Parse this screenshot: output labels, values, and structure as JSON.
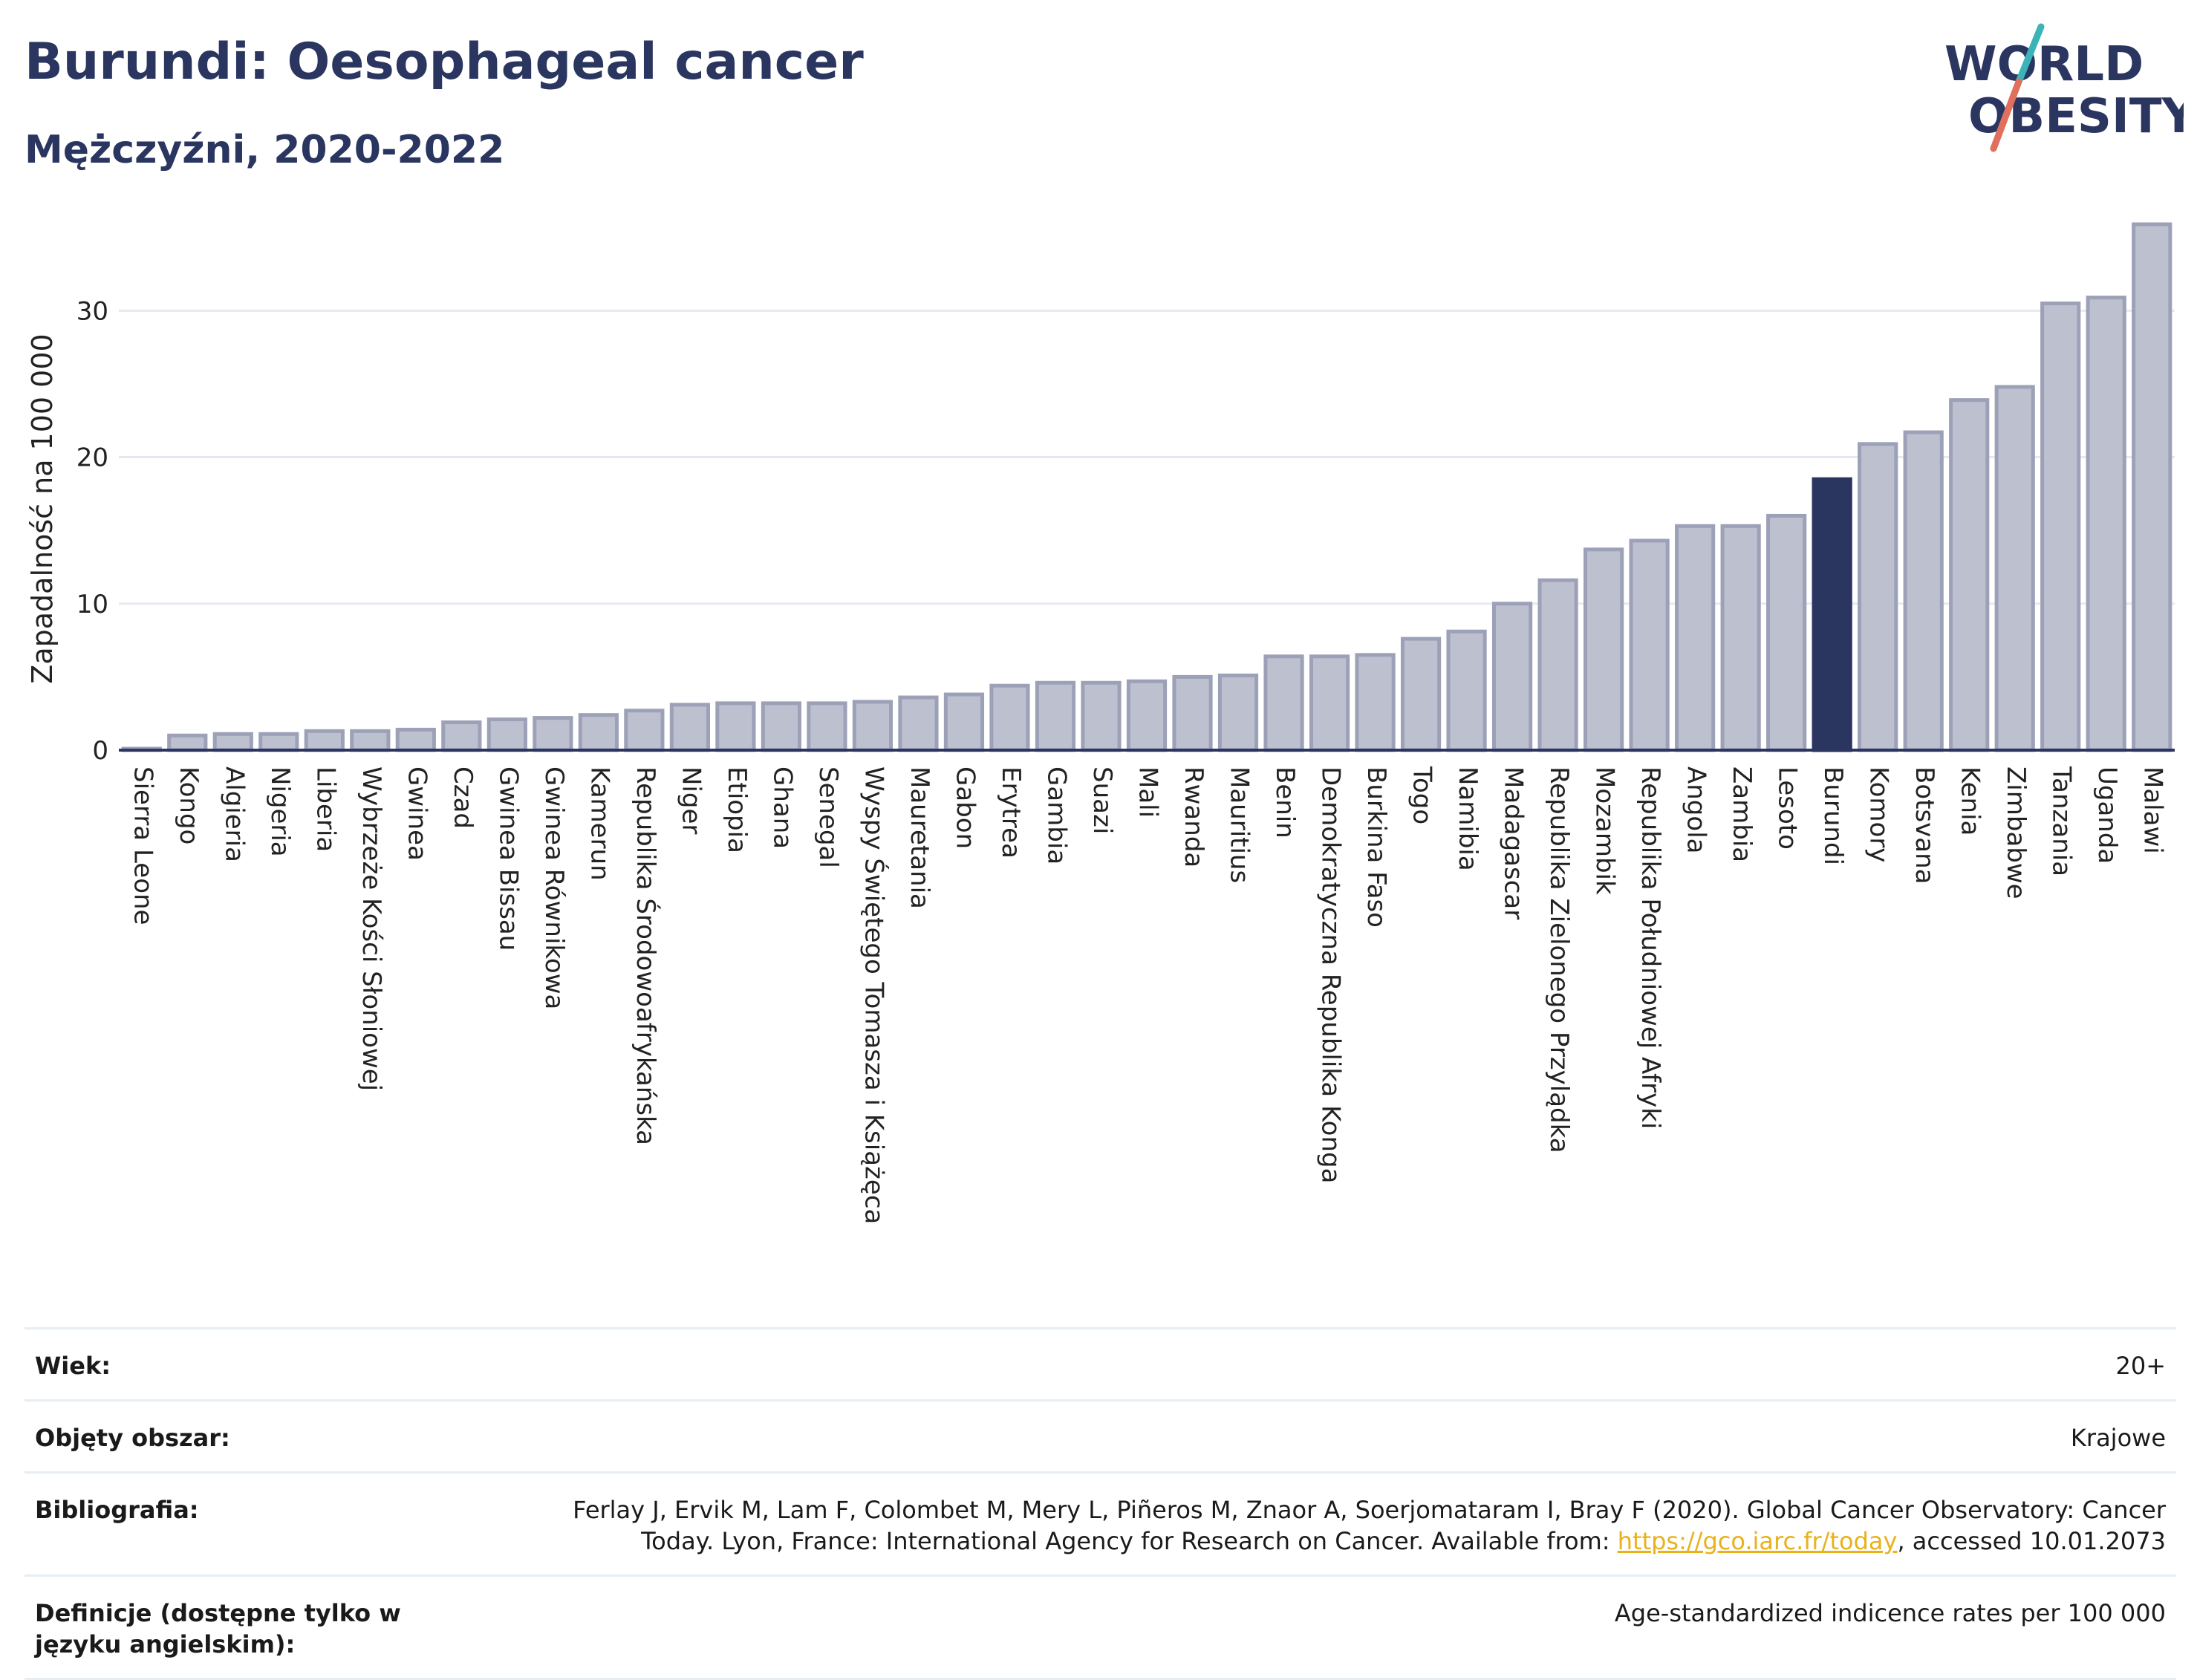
{
  "header": {
    "title": "Burundi: Oesophageal cancer",
    "subtitle": "Mężczyźni, 2020-2022"
  },
  "logo": {
    "line1": "WORLD",
    "line2": "OBESITY",
    "colors": {
      "text": "#2a3560",
      "slash_teal": "#3bb3b8",
      "slash_coral": "#e0705d"
    }
  },
  "colors": {
    "bar_fill": "#bcc0cf",
    "bar_stroke": "#9da1b8",
    "highlight_fill": "#2a3560",
    "axis": "#2a3560",
    "grid": "#e6eaf0"
  },
  "chart_data": {
    "type": "bar",
    "title": "",
    "xlabel": "",
    "ylabel": "Zapadalność na 100 000",
    "ylim": [
      0,
      36
    ],
    "yticks": [
      0,
      10,
      20,
      30
    ],
    "grid": true,
    "highlight": "Burundi",
    "categories": [
      "Sierra Leone",
      "Kongo",
      "Algieria",
      "Nigeria",
      "Liberia",
      "Wybrzeże Kości Słoniowej",
      "Gwinea",
      "Czad",
      "Gwinea Bissau",
      "Gwinea Równikowa",
      "Kamerun",
      "Republika Środowoafrykańska",
      "Niger",
      "Etiopia",
      "Ghana",
      "Senegal",
      "Wyspy Świętego Tomasza i Książęca",
      "Mauretania",
      "Gabon",
      "Erytrea",
      "Gambia",
      "Suazi",
      "Mali",
      "Rwanda",
      "Mauritius",
      "Benin",
      "Demokratyczna Republika Konga",
      "Burkina Faso",
      "Togo",
      "Namibia",
      "Madagascar",
      "Republika Zielonego Przylądka",
      "Mozambik",
      "Republika Południowej Afryki",
      "Angola",
      "Zambia",
      "Lesoto",
      "Burundi",
      "Komory",
      "Botsvana",
      "Kenia",
      "Zimbabwe",
      "Tanzania",
      "Uganda",
      "Malawi"
    ],
    "values": [
      0.1,
      1.0,
      1.1,
      1.1,
      1.3,
      1.3,
      1.4,
      1.9,
      2.1,
      2.2,
      2.4,
      2.7,
      3.1,
      3.2,
      3.2,
      3.2,
      3.3,
      3.6,
      3.8,
      4.4,
      4.6,
      4.6,
      4.7,
      5.0,
      5.1,
      6.4,
      6.4,
      6.5,
      7.6,
      8.1,
      10.0,
      11.6,
      13.7,
      14.3,
      15.3,
      15.3,
      16.0,
      18.5,
      20.9,
      21.7,
      23.9,
      24.8,
      30.5,
      30.9,
      35.9
    ]
  },
  "meta": {
    "age_label": "Wiek:",
    "age_value": "20+",
    "coverage_label": "Objęty obszar:",
    "coverage_value": "Krajowe",
    "bib_label": "Bibliografia:",
    "bib_text1": "Ferlay J, Ervik M, Lam F, Colombet M, Mery L, Piñeros M, Znaor A, Soerjomataram I, Bray F (2020). Global Cancer Observatory: Cancer Today. Lyon, France: International Agency for Research on Cancer. Available from: ",
    "bib_link": "https://gco.iarc.fr/today",
    "bib_text2": ", accessed 10.01.2073",
    "def_label": "Definicje (dostępne tylko w języku angielskim):",
    "def_value": "Age-standardized indicence rates per 100 000"
  }
}
